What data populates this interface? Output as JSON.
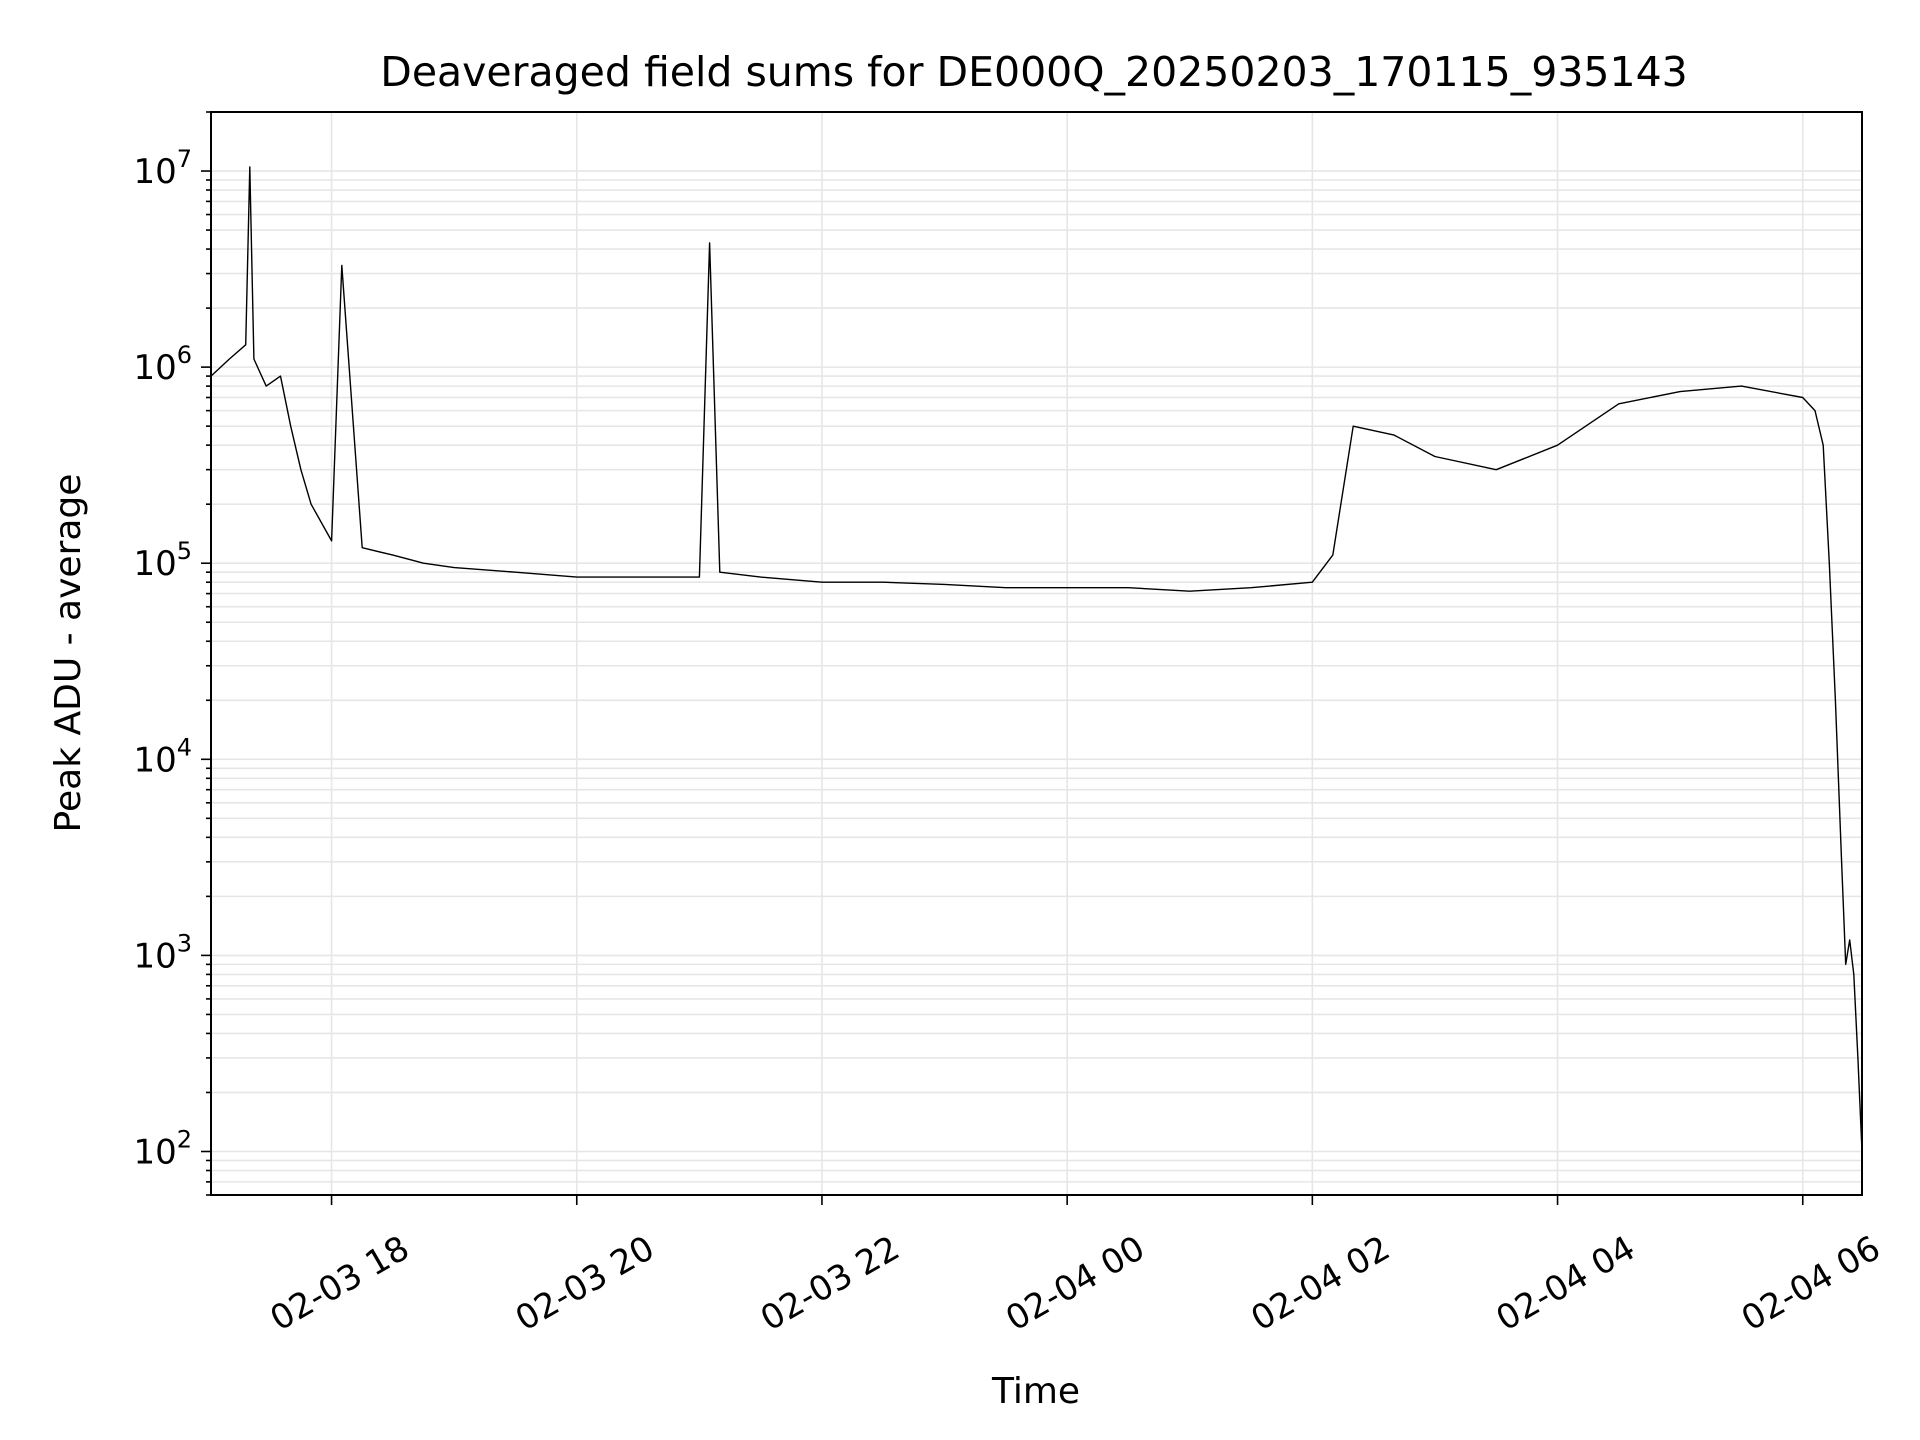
{
  "chart_data": {
    "type": "line",
    "title": "Deaveraged field sums for DE000Q_20250203_170115_935143",
    "xlabel": "Time",
    "ylabel": "Peak ADU - average",
    "yscale": "log",
    "ylim": [
      60,
      20000000
    ],
    "xlim": [
      "2025-02-03 17:01",
      "2025-02-04 06:29"
    ],
    "grid": true,
    "line_color": "#000000",
    "grid_color": "#e6e6e6",
    "x_ticks": [
      {
        "t": "2025-02-03 18:00",
        "label": "02-03 18"
      },
      {
        "t": "2025-02-03 20:00",
        "label": "02-03 20"
      },
      {
        "t": "2025-02-03 22:00",
        "label": "02-03 22"
      },
      {
        "t": "2025-02-04 00:00",
        "label": "02-04 00"
      },
      {
        "t": "2025-02-04 02:00",
        "label": "02-04 02"
      },
      {
        "t": "2025-02-04 04:00",
        "label": "02-04 04"
      },
      {
        "t": "2025-02-04 06:00",
        "label": "02-04 06"
      }
    ],
    "y_ticks": [
      {
        "value": 100,
        "base": "10",
        "exp": "2"
      },
      {
        "value": 1000,
        "base": "10",
        "exp": "3"
      },
      {
        "value": 10000,
        "base": "10",
        "exp": "4"
      },
      {
        "value": 100000,
        "base": "10",
        "exp": "5"
      },
      {
        "value": 1000000,
        "base": "10",
        "exp": "6"
      },
      {
        "value": 10000000,
        "base": "10",
        "exp": "7"
      }
    ],
    "series": [
      {
        "points": [
          [
            "2025-02-03 17:01",
            900000
          ],
          [
            "2025-02-03 17:10",
            1100000
          ],
          [
            "2025-02-03 17:18",
            1300000
          ],
          [
            "2025-02-03 17:20",
            10500000
          ],
          [
            "2025-02-03 17:22",
            1100000
          ],
          [
            "2025-02-03 17:28",
            800000
          ],
          [
            "2025-02-03 17:35",
            900000
          ],
          [
            "2025-02-03 17:40",
            500000
          ],
          [
            "2025-02-03 17:45",
            300000
          ],
          [
            "2025-02-03 17:50",
            200000
          ],
          [
            "2025-02-03 18:00",
            130000
          ],
          [
            "2025-02-03 18:05",
            3300000
          ],
          [
            "2025-02-03 18:15",
            120000
          ],
          [
            "2025-02-03 18:30",
            110000
          ],
          [
            "2025-02-03 18:45",
            100000
          ],
          [
            "2025-02-03 19:00",
            95000
          ],
          [
            "2025-02-03 19:30",
            90000
          ],
          [
            "2025-02-03 20:00",
            85000
          ],
          [
            "2025-02-03 20:30",
            85000
          ],
          [
            "2025-02-03 21:00",
            85000
          ],
          [
            "2025-02-03 21:05",
            4300000
          ],
          [
            "2025-02-03 21:10",
            90000
          ],
          [
            "2025-02-03 21:30",
            85000
          ],
          [
            "2025-02-03 22:00",
            80000
          ],
          [
            "2025-02-03 22:30",
            80000
          ],
          [
            "2025-02-03 23:00",
            78000
          ],
          [
            "2025-02-03 23:30",
            75000
          ],
          [
            "2025-02-04 00:00",
            75000
          ],
          [
            "2025-02-04 00:30",
            75000
          ],
          [
            "2025-02-04 01:00",
            72000
          ],
          [
            "2025-02-04 01:30",
            75000
          ],
          [
            "2025-02-04 02:00",
            80000
          ],
          [
            "2025-02-04 02:10",
            110000
          ],
          [
            "2025-02-04 02:20",
            500000
          ],
          [
            "2025-02-04 02:40",
            450000
          ],
          [
            "2025-02-04 03:00",
            350000
          ],
          [
            "2025-02-04 03:30",
            300000
          ],
          [
            "2025-02-04 04:00",
            400000
          ],
          [
            "2025-02-04 04:30",
            650000
          ],
          [
            "2025-02-04 05:00",
            750000
          ],
          [
            "2025-02-04 05:30",
            800000
          ],
          [
            "2025-02-04 06:00",
            700000
          ],
          [
            "2025-02-04 06:06",
            600000
          ],
          [
            "2025-02-04 06:10",
            400000
          ],
          [
            "2025-02-04 06:13",
            100000
          ],
          [
            "2025-02-04 06:16",
            20000
          ],
          [
            "2025-02-04 06:19",
            3000
          ],
          [
            "2025-02-04 06:21",
            900
          ],
          [
            "2025-02-04 06:23",
            1200
          ],
          [
            "2025-02-04 06:25",
            800
          ],
          [
            "2025-02-04 06:27",
            300
          ],
          [
            "2025-02-04 06:29",
            100
          ]
        ]
      }
    ]
  }
}
